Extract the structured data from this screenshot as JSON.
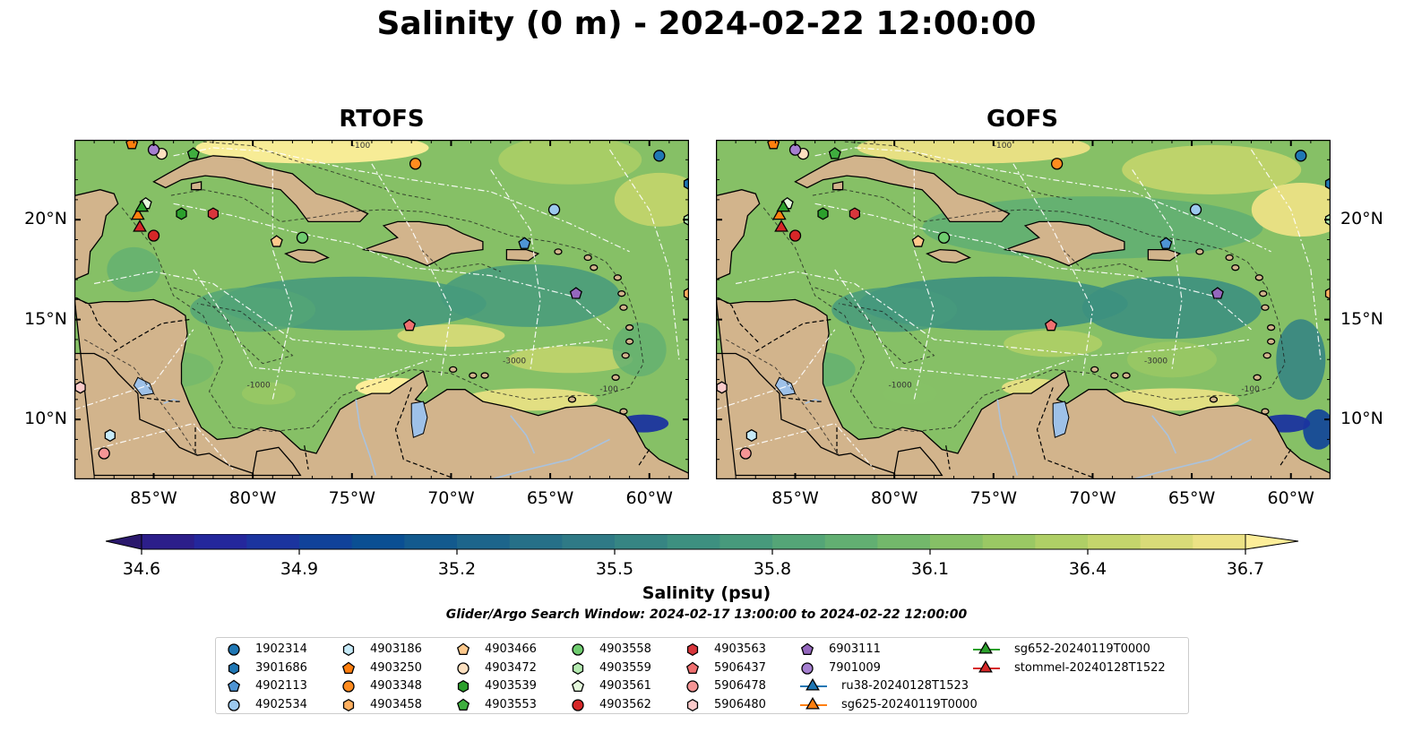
{
  "title": "Salinity (0 m) - 2024-02-22 12:00:00",
  "panels": [
    {
      "id": "rtofs",
      "title": "RTOFS"
    },
    {
      "id": "gofs",
      "title": "GOFS"
    }
  ],
  "map": {
    "extent": {
      "lon": [
        -89,
        -58
      ],
      "lat": [
        7,
        24
      ]
    },
    "lon_ticks": [
      "85°W",
      "80°W",
      "75°W",
      "70°W",
      "65°W",
      "60°W"
    ],
    "lat_ticks": [
      "20°N",
      "15°N",
      "10°N"
    ],
    "lon_tick_values": [
      -85,
      -80,
      -75,
      -70,
      -65,
      -60
    ],
    "lat_tick_values": [
      20,
      15,
      10
    ],
    "contour_labels": [
      "-100",
      "-1000",
      "-3000"
    ],
    "land_color": "#d2b48c",
    "lake_color": "#9ec1e8"
  },
  "colorbar": {
    "label": "Salinity (psu)",
    "ticks": [
      "34.6",
      "34.9",
      "35.2",
      "35.5",
      "35.8",
      "36.1",
      "36.4",
      "36.7"
    ],
    "min": 34.6,
    "max": 36.7,
    "extend": "both",
    "colormap": "haline",
    "colors": [
      "#2a186c",
      "#2c1e8a",
      "#24279c",
      "#1b349f",
      "#10429a",
      "#0a4f93",
      "#135a8e",
      "#1d658b",
      "#267088",
      "#2f7a86",
      "#368583",
      "#3d9080",
      "#479a7c",
      "#54a577",
      "#62af72",
      "#73b86b",
      "#86c066",
      "#9ac864",
      "#afcf66",
      "#c4d56c",
      "#d9db78",
      "#ece285",
      "#fdee99"
    ]
  },
  "search_window": "Glider/Argo Search Window: 2024-02-17 13:00:00 to 2024-02-22 12:00:00",
  "legend": [
    {
      "label": "1902314",
      "marker": "circle",
      "color": "#1f77b4"
    },
    {
      "label": "3901686",
      "marker": "hexagon",
      "color": "#1f77b4"
    },
    {
      "label": "4902113",
      "marker": "pentagon",
      "color": "#4e94d4"
    },
    {
      "label": "4902534",
      "marker": "circle",
      "color": "#9cc9ee"
    },
    {
      "label": "4903186",
      "marker": "hexagon",
      "color": "#c6eaf8"
    },
    {
      "label": "4903250",
      "marker": "pentagon",
      "color": "#ff7f0e"
    },
    {
      "label": "4903348",
      "marker": "circle",
      "color": "#ff8c1f"
    },
    {
      "label": "4903458",
      "marker": "hexagon",
      "color": "#ffb060"
    },
    {
      "label": "4903466",
      "marker": "pentagon",
      "color": "#ffc98c"
    },
    {
      "label": "4903472",
      "marker": "circle",
      "color": "#fde0c0"
    },
    {
      "label": "4903539",
      "marker": "hexagon",
      "color": "#2ca02c"
    },
    {
      "label": "4903553",
      "marker": "pentagon",
      "color": "#3fae3f"
    },
    {
      "label": "4903558",
      "marker": "circle",
      "color": "#6fcc6f"
    },
    {
      "label": "4903559",
      "marker": "hexagon",
      "color": "#b4eab0"
    },
    {
      "label": "4903561",
      "marker": "pentagon",
      "color": "#e4f8dc"
    },
    {
      "label": "4903562",
      "marker": "circle",
      "color": "#d62728"
    },
    {
      "label": "4903563",
      "marker": "hexagon",
      "color": "#d8363c"
    },
    {
      "label": "5906437",
      "marker": "pentagon",
      "color": "#f07070"
    },
    {
      "label": "5906478",
      "marker": "circle",
      "color": "#f59595"
    },
    {
      "label": "5906480",
      "marker": "hexagon",
      "color": "#fbcaca"
    },
    {
      "label": "6903111",
      "marker": "pentagon",
      "color": "#9467bd"
    },
    {
      "label": "7901009",
      "marker": "circle",
      "color": "#a57fd0"
    },
    {
      "label": "ru38-20240128T1523",
      "marker": "triangle-line",
      "color": "#1f77b4"
    },
    {
      "label": "sg625-20240119T0000",
      "marker": "triangle-line",
      "color": "#ff7f0e"
    },
    {
      "label": "sg652-20240119T0000",
      "marker": "triangle-line",
      "color": "#2ca02c"
    },
    {
      "label": "stommel-20240128T1522",
      "marker": "triangle-line",
      "color": "#d62728"
    }
  ],
  "observations": [
    {
      "id": "1902314",
      "lon": -59.5,
      "lat": 23.2
    },
    {
      "id": "3901686",
      "lon": -58.0,
      "lat": 21.8
    },
    {
      "id": "4902113",
      "lon": -66.3,
      "lat": 18.8
    },
    {
      "id": "4902534",
      "lon": -64.8,
      "lat": 20.5
    },
    {
      "id": "4903186",
      "lon": -87.2,
      "lat": 9.2
    },
    {
      "id": "4903250",
      "lon": -86.1,
      "lat": 23.8
    },
    {
      "id": "4903348",
      "lon": -71.8,
      "lat": 22.8
    },
    {
      "id": "4903458",
      "lon": -58.0,
      "lat": 16.3
    },
    {
      "id": "4903466",
      "lon": -78.8,
      "lat": 18.9
    },
    {
      "id": "4903472",
      "lon": -84.6,
      "lat": 23.3
    },
    {
      "id": "4903539",
      "lon": -83.6,
      "lat": 20.3
    },
    {
      "id": "4903553",
      "lon": -83.0,
      "lat": 23.3
    },
    {
      "id": "4903558",
      "lon": -77.5,
      "lat": 19.1
    },
    {
      "id": "4903559",
      "lon": -58.0,
      "lat": 20.0
    },
    {
      "id": "4903561",
      "lon": -85.4,
      "lat": 20.8
    },
    {
      "id": "4903562",
      "lon": -85.0,
      "lat": 19.2
    },
    {
      "id": "4903563",
      "lon": -82.0,
      "lat": 20.3
    },
    {
      "id": "5906437",
      "lon": -72.1,
      "lat": 14.7
    },
    {
      "id": "5906478",
      "lon": -87.5,
      "lat": 8.3
    },
    {
      "id": "5906480",
      "lon": -88.7,
      "lat": 11.6
    },
    {
      "id": "6903111",
      "lon": -63.7,
      "lat": 16.3
    },
    {
      "id": "7901009",
      "lon": -85.0,
      "lat": 23.5
    },
    {
      "id": "sg625-20240119T0000",
      "lon": -85.8,
      "lat": 20.2
    },
    {
      "id": "sg652-20240119T0000",
      "lon": -85.6,
      "lat": 20.6
    },
    {
      "id": "stommel-20240128T1522",
      "lon": -85.7,
      "lat": 19.6
    }
  ]
}
